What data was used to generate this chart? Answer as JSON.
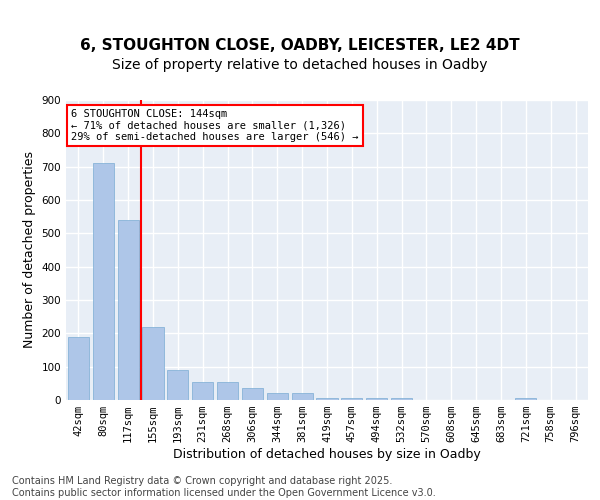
{
  "title_line1": "6, STOUGHTON CLOSE, OADBY, LEICESTER, LE2 4DT",
  "title_line2": "Size of property relative to detached houses in Oadby",
  "xlabel": "Distribution of detached houses by size in Oadby",
  "ylabel": "Number of detached properties",
  "bar_color": "#aec6e8",
  "bar_edge_color": "#7aacd4",
  "vline_color": "red",
  "annotation_text": "6 STOUGHTON CLOSE: 144sqm\n← 71% of detached houses are smaller (1,326)\n29% of semi-detached houses are larger (546) →",
  "annotation_box_color": "white",
  "annotation_box_edge_color": "red",
  "categories": [
    "42sqm",
    "80sqm",
    "117sqm",
    "155sqm",
    "193sqm",
    "231sqm",
    "268sqm",
    "306sqm",
    "344sqm",
    "381sqm",
    "419sqm",
    "457sqm",
    "494sqm",
    "532sqm",
    "570sqm",
    "608sqm",
    "645sqm",
    "683sqm",
    "721sqm",
    "758sqm",
    "796sqm"
  ],
  "values": [
    190,
    710,
    540,
    220,
    90,
    55,
    55,
    35,
    20,
    20,
    5,
    5,
    5,
    5,
    0,
    0,
    0,
    0,
    5,
    0,
    0
  ],
  "ylim": [
    0,
    900
  ],
  "yticks": [
    0,
    100,
    200,
    300,
    400,
    500,
    600,
    700,
    800,
    900
  ],
  "background_color": "#e8eef6",
  "grid_color": "white",
  "footer_text": "Contains HM Land Registry data © Crown copyright and database right 2025.\nContains public sector information licensed under the Open Government Licence v3.0.",
  "title_fontsize": 11,
  "subtitle_fontsize": 10,
  "label_fontsize": 9,
  "tick_fontsize": 7.5,
  "footer_fontsize": 7
}
